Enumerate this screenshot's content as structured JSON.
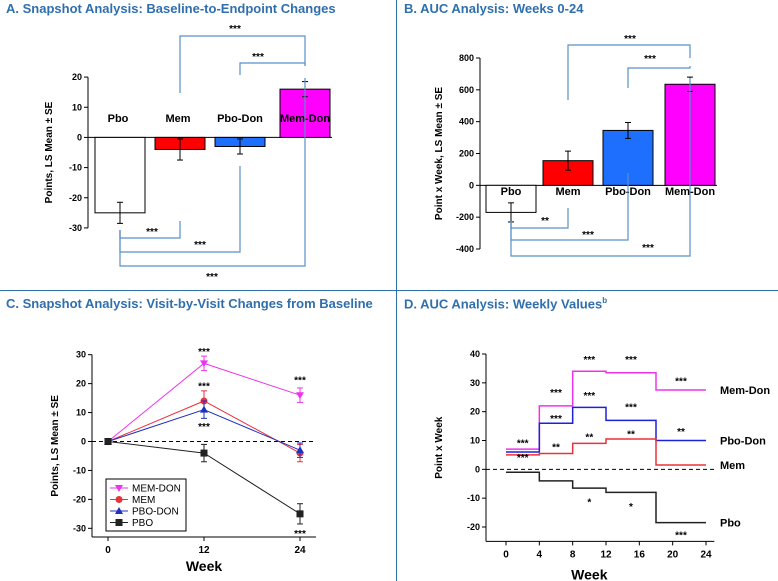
{
  "panels": {
    "A": {
      "title": "A. Snapshot Analysis: Baseline-to-Endpoint Changes"
    },
    "B": {
      "title": "B. AUC Analysis: Weeks 0-24"
    },
    "C": {
      "title": "C. Snapshot Analysis: Visit-by-Visit Changes from Baseline"
    },
    "D": {
      "title": "D. AUC Analysis: Weekly Values",
      "title_sup": "b"
    }
  },
  "chart_data": [
    {
      "id": "A",
      "type": "bar",
      "title": "A. Snapshot Analysis: Baseline-to-Endpoint Changes",
      "ylabel": "Points, LS Mean ± SE",
      "xlabel": "",
      "ylim": [
        -35,
        25
      ],
      "yticks": [
        20,
        10,
        0,
        -10,
        -20,
        -30
      ],
      "categories": [
        "Pbo",
        "Mem",
        "Pbo-Don",
        "Mem-Don"
      ],
      "values": [
        -25,
        -4,
        -3,
        16
      ],
      "errors": [
        3.5,
        3.5,
        2.5,
        2.5
      ],
      "colors": [
        "#ffffff",
        "#ff0000",
        "#1f6fff",
        "#ff00ff"
      ],
      "brackets": [
        {
          "from": 1,
          "to": 3,
          "side": "top",
          "label": "***"
        },
        {
          "from": 2,
          "to": 3,
          "side": "top",
          "label": "***"
        },
        {
          "from": 0,
          "to": 1,
          "side": "bottom",
          "label": "***"
        },
        {
          "from": 0,
          "to": 2,
          "side": "bottom",
          "label": "***"
        },
        {
          "from": 0,
          "to": 3,
          "side": "bottom",
          "label": "***"
        }
      ]
    },
    {
      "id": "B",
      "type": "bar",
      "title": "B. AUC Analysis: Weeks 0-24",
      "ylabel": "Point x Week, LS Mean ± SE",
      "xlabel": "",
      "ylim": [
        -400,
        800
      ],
      "yticks": [
        800,
        600,
        400,
        200,
        0,
        -200,
        -400
      ],
      "categories": [
        "Pbo",
        "Mem",
        "Pbo-Don",
        "Mem-Don"
      ],
      "values": [
        -170,
        155,
        345,
        635
      ],
      "errors": [
        60,
        60,
        50,
        45
      ],
      "colors": [
        "#ffffff",
        "#ff0000",
        "#1f6fff",
        "#ff00ff"
      ],
      "brackets": [
        {
          "from": 1,
          "to": 3,
          "side": "top",
          "label": "***"
        },
        {
          "from": 2,
          "to": 3,
          "side": "top",
          "label": "***"
        },
        {
          "from": 0,
          "to": 1,
          "side": "bottom",
          "label": "**"
        },
        {
          "from": 0,
          "to": 2,
          "side": "bottom",
          "label": "***"
        },
        {
          "from": 0,
          "to": 3,
          "side": "bottom",
          "label": "***"
        }
      ]
    },
    {
      "id": "C",
      "type": "line",
      "title": "C. Snapshot Analysis: Visit-by-Visit Changes from Baseline",
      "xlabel": "Week",
      "ylabel": "Points, LS Mean ± SE",
      "xlim": [
        -2,
        26
      ],
      "ylim": [
        -33,
        33
      ],
      "xticks": [
        0,
        12,
        24
      ],
      "yticks": [
        30,
        20,
        10,
        0,
        -10,
        -20,
        -30
      ],
      "x": [
        0,
        12,
        24
      ],
      "series": [
        {
          "name": "MEM-DON",
          "color": "#ee33ee",
          "marker": "tri-down",
          "values": [
            0,
            27,
            16
          ],
          "errors": [
            0,
            2.5,
            2.5
          ]
        },
        {
          "name": "MEM",
          "color": "#e8323c",
          "marker": "circle",
          "values": [
            0,
            14,
            -4
          ],
          "errors": [
            0,
            3.5,
            3
          ]
        },
        {
          "name": "PBO-DON",
          "color": "#2030c0",
          "marker": "tri-up",
          "values": [
            0,
            11,
            -3
          ],
          "errors": [
            0,
            3,
            2.5
          ]
        },
        {
          "name": "PBO",
          "color": "#222222",
          "marker": "square",
          "values": [
            0,
            -4,
            -25
          ],
          "errors": [
            0,
            3,
            3.5
          ]
        }
      ],
      "annotations": [
        {
          "x": 12,
          "y": 31,
          "text": "***"
        },
        {
          "x": 12,
          "y": 19,
          "text": "***"
        },
        {
          "x": 12,
          "y": 5,
          "text": "***"
        },
        {
          "x": 24,
          "y": 21,
          "text": "***"
        },
        {
          "x": 24,
          "y": -32,
          "text": "***"
        }
      ],
      "legend_position": "bottom-left"
    },
    {
      "id": "D",
      "type": "line",
      "title": "D. AUC Analysis: Weekly Values",
      "xlabel": "Week",
      "ylabel": "Point x Week",
      "xlim": [
        -2,
        25
      ],
      "ylim": [
        -25,
        40
      ],
      "xticks": [
        0,
        4,
        8,
        12,
        16,
        20,
        24
      ],
      "yticks": [
        40,
        30,
        20,
        10,
        0,
        -10,
        -20
      ],
      "series": [
        {
          "name": "Mem-Don",
          "color": "#ee33ee",
          "x": [
            0,
            4,
            4,
            8,
            8,
            12,
            12,
            18,
            18,
            24
          ],
          "values": [
            7,
            7,
            22,
            22,
            34,
            34,
            33.5,
            33.5,
            27.5,
            27.5
          ]
        },
        {
          "name": "Pbo-Don",
          "color": "#1a22dd",
          "x": [
            0,
            4,
            4,
            8,
            8,
            12,
            12,
            18,
            18,
            24
          ],
          "values": [
            6,
            6,
            16,
            16,
            21.5,
            21.5,
            17,
            17,
            10,
            10
          ]
        },
        {
          "name": "Mem",
          "color": "#e8323c",
          "x": [
            0,
            4,
            4,
            8,
            8,
            12,
            12,
            18,
            18,
            24
          ],
          "values": [
            5,
            5,
            5.5,
            5.5,
            9,
            9,
            10.5,
            10.5,
            1.5,
            1.5
          ]
        },
        {
          "name": "Pbo",
          "color": "#222222",
          "x": [
            0,
            4,
            4,
            8,
            8,
            12,
            12,
            18,
            18,
            24
          ],
          "values": [
            -1,
            -1,
            -4,
            -4,
            -6.5,
            -6.5,
            -8,
            -8,
            -18.5,
            -18.5
          ]
        }
      ],
      "annotations": [
        {
          "x": 2,
          "y": 9,
          "text": "***"
        },
        {
          "x": 2,
          "y": 4,
          "text": "***"
        },
        {
          "x": 6,
          "y": 26.5,
          "text": "***"
        },
        {
          "x": 6,
          "y": 17.5,
          "text": "***"
        },
        {
          "x": 6,
          "y": 7.5,
          "text": "**"
        },
        {
          "x": 10,
          "y": 38,
          "text": "***"
        },
        {
          "x": 10,
          "y": 25.5,
          "text": "***"
        },
        {
          "x": 10,
          "y": 11,
          "text": "**"
        },
        {
          "x": 10,
          "y": -11.5,
          "text": "*"
        },
        {
          "x": 15,
          "y": 38,
          "text": "***"
        },
        {
          "x": 15,
          "y": 21.5,
          "text": "***"
        },
        {
          "x": 15,
          "y": 12,
          "text": "**"
        },
        {
          "x": 15,
          "y": -13,
          "text": "*"
        },
        {
          "x": 21,
          "y": 30.5,
          "text": "***"
        },
        {
          "x": 21,
          "y": 13,
          "text": "**"
        },
        {
          "x": 21,
          "y": -23,
          "text": "***"
        }
      ],
      "line_labels": [
        "Mem-Don",
        "Pbo-Don",
        "Mem",
        "Pbo"
      ]
    }
  ]
}
